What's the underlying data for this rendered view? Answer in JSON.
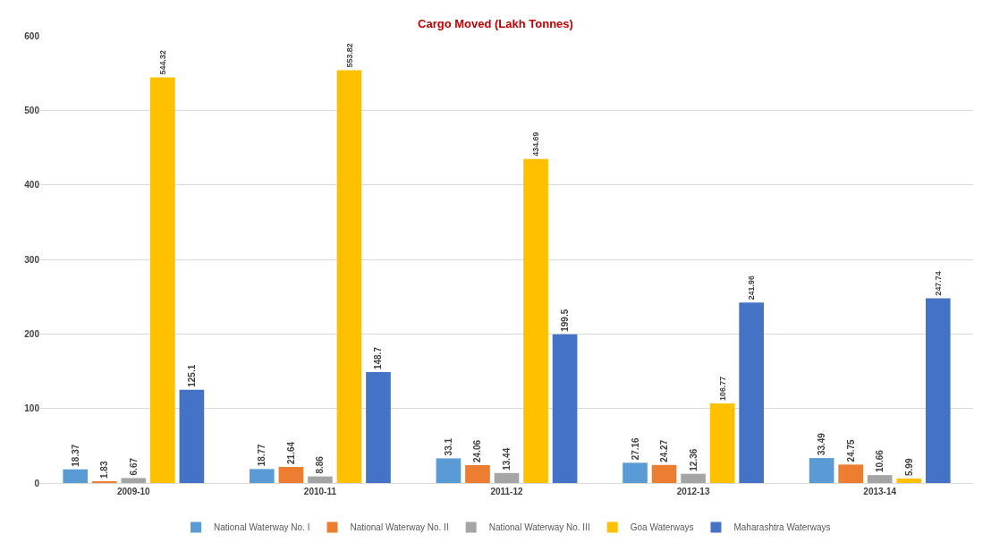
{
  "chart_data": {
    "type": "bar",
    "title": "Cargo Moved (Lakh Tonnes)",
    "categories": [
      "2009-10",
      "2010-11",
      "2011-12",
      "2012-13",
      "2013-14"
    ],
    "series": [
      {
        "name": "National Waterway No. I",
        "color": "#5b9bd5",
        "values": [
          18.37,
          18.77,
          33.1,
          27.16,
          33.49
        ]
      },
      {
        "name": "National Waterway No. II",
        "color": "#ed7d31",
        "values": [
          1.83,
          21.64,
          24.06,
          24.27,
          24.75
        ]
      },
      {
        "name": "National Waterway No. III",
        "color": "#a5a5a5",
        "values": [
          6.67,
          8.86,
          13.44,
          12.36,
          10.66
        ]
      },
      {
        "name": "Goa Waterways",
        "color": "#ffc000",
        "values": [
          544.32,
          553.82,
          434.69,
          106.77,
          5.99
        ]
      },
      {
        "name": "Maharashtra Waterways",
        "color": "#4472c4",
        "values": [
          125.1,
          148.7,
          199.5,
          241.96,
          247.74
        ]
      }
    ],
    "ylim": [
      0,
      600
    ],
    "yticks": [
      0,
      100,
      200,
      300,
      400,
      500,
      600
    ],
    "grid": "y",
    "legend": "bottom",
    "data_labels": true
  }
}
